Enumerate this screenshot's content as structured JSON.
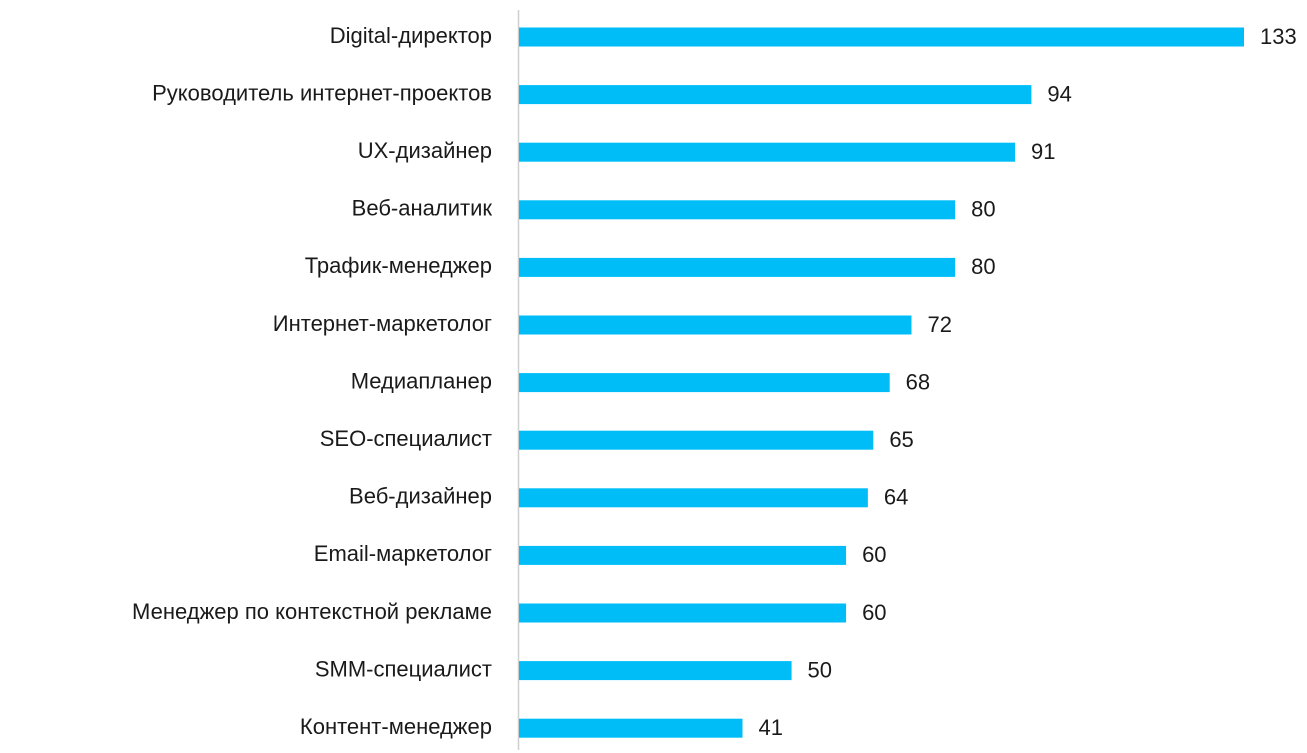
{
  "chart_data": {
    "type": "barh",
    "categories": [
      "Digital-директор",
      "Руководитель интернет-проектов",
      "UX-дизайнер",
      "Веб-аналитик",
      "Трафик-менеджер",
      "Интернет-маркетолог",
      "Медиапланер",
      "SEO-специалист",
      "Веб-дизайнер",
      "Email-маркетолог",
      "Менеджер по контекстной рекламе",
      "SMM-специалист",
      "Контент-менеджер"
    ],
    "values": [
      133,
      94,
      91,
      80,
      80,
      72,
      68,
      65,
      64,
      60,
      60,
      50,
      41
    ],
    "color": "#00bdf8"
  }
}
